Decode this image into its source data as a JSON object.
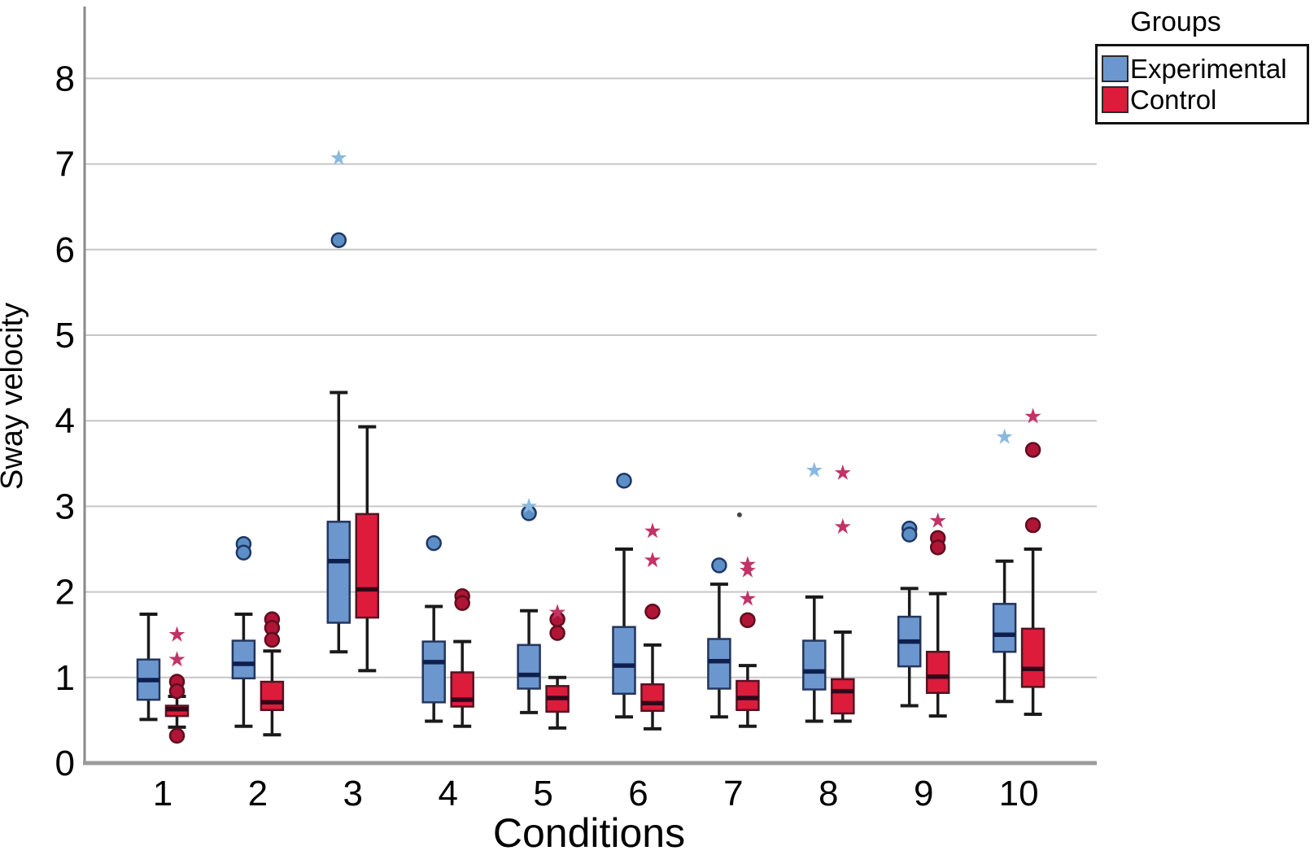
{
  "figure": {
    "background": "#ffffff"
  },
  "legend": {
    "title": "Groups",
    "items": [
      {
        "label": "Experimental",
        "color": "#6b97ce"
      },
      {
        "label": "Control",
        "color": "#dd1c3c"
      }
    ]
  },
  "chart_data": {
    "type": "boxplot",
    "xlabel": "Conditions",
    "ylabel": "Sway velocity",
    "categories": [
      "1",
      "2",
      "3",
      "4",
      "5",
      "6",
      "7",
      "8",
      "9",
      "10"
    ],
    "yticks": [
      0,
      1,
      2,
      3,
      4,
      5,
      6,
      7,
      8
    ],
    "ylim": [
      0,
      8.9
    ],
    "grid": true,
    "legend_position": "top-right",
    "axis_colors": {
      "gridline": "#c6c6c6",
      "y_axis": "#8a8a8a",
      "x_axis": "#9b9b9b",
      "tick_text": "#000000"
    },
    "series": [
      {
        "name": "Experimental",
        "fill": "#6b97ce",
        "edge": "#24365e",
        "median_color": "#0f1f4d",
        "circle_fill": "#5d8fc7",
        "circle_edge": "#1e3765",
        "star_color": "#8ab9de",
        "boxes": [
          {
            "whislo": 0.51,
            "q1": 0.74,
            "med": 0.97,
            "q3": 1.21,
            "whishi": 1.74,
            "circles": [],
            "stars": [],
            "dots": []
          },
          {
            "whislo": 0.43,
            "q1": 0.99,
            "med": 1.16,
            "q3": 1.43,
            "whishi": 1.74,
            "circles": [
              2.56,
              2.46
            ],
            "stars": [],
            "dots": []
          },
          {
            "whislo": 1.3,
            "q1": 1.64,
            "med": 2.36,
            "q3": 2.82,
            "whishi": 4.33,
            "circles": [
              6.11
            ],
            "stars": [
              7.07
            ],
            "dots": []
          },
          {
            "whislo": 0.49,
            "q1": 0.71,
            "med": 1.18,
            "q3": 1.42,
            "whishi": 1.83,
            "circles": [
              2.57
            ],
            "stars": [],
            "dots": []
          },
          {
            "whislo": 0.59,
            "q1": 0.87,
            "med": 1.03,
            "q3": 1.38,
            "whishi": 1.78,
            "circles": [
              2.92
            ],
            "stars": [
              3.0
            ],
            "dots": []
          },
          {
            "whislo": 0.54,
            "q1": 0.81,
            "med": 1.14,
            "q3": 1.59,
            "whishi": 2.5,
            "circles": [
              3.3
            ],
            "stars": [],
            "dots": []
          },
          {
            "whislo": 0.54,
            "q1": 0.87,
            "med": 1.19,
            "q3": 1.45,
            "whishi": 2.09,
            "circles": [
              2.31
            ],
            "stars": [],
            "dots": []
          },
          {
            "whislo": 0.49,
            "q1": 0.86,
            "med": 1.07,
            "q3": 1.43,
            "whishi": 1.94,
            "circles": [],
            "stars": [
              3.42
            ],
            "dots": []
          },
          {
            "whislo": 0.67,
            "q1": 1.13,
            "med": 1.42,
            "q3": 1.71,
            "whishi": 2.04,
            "circles": [
              2.74,
              2.67
            ],
            "stars": [],
            "dots": []
          },
          {
            "whislo": 0.72,
            "q1": 1.3,
            "med": 1.5,
            "q3": 1.86,
            "whishi": 2.36,
            "circles": [],
            "stars": [
              3.81
            ],
            "dots": []
          }
        ]
      },
      {
        "name": "Control",
        "fill": "#dd1c3c",
        "edge": "#551222",
        "median_color": "#30081a",
        "circle_fill": "#b01535",
        "circle_edge": "#5f0d1f",
        "star_color": "#c13366",
        "boxes": [
          {
            "whislo": 0.42,
            "q1": 0.55,
            "med": 0.63,
            "q3": 0.67,
            "whishi": 0.78,
            "circles": [
              0.95,
              0.84,
              0.32
            ],
            "stars": [
              1.5,
              1.21
            ],
            "dots": []
          },
          {
            "whislo": 0.33,
            "q1": 0.62,
            "med": 0.71,
            "q3": 0.95,
            "whishi": 1.31,
            "circles": [
              1.68,
              1.58,
              1.44
            ],
            "stars": [],
            "dots": []
          },
          {
            "whislo": 1.08,
            "q1": 1.7,
            "med": 2.03,
            "q3": 2.91,
            "whishi": 3.93,
            "circles": [],
            "stars": [],
            "dots": []
          },
          {
            "whislo": 0.43,
            "q1": 0.66,
            "med": 0.74,
            "q3": 1.06,
            "whishi": 1.42,
            "circles": [
              1.95,
              1.87
            ],
            "stars": [],
            "dots": []
          },
          {
            "whislo": 0.41,
            "q1": 0.6,
            "med": 0.76,
            "q3": 0.9,
            "whishi": 1.0,
            "circles": [
              1.68,
              1.52
            ],
            "stars": [
              1.76
            ],
            "dots": []
          },
          {
            "whislo": 0.4,
            "q1": 0.61,
            "med": 0.7,
            "q3": 0.92,
            "whishi": 1.38,
            "circles": [
              1.77
            ],
            "stars": [
              2.71,
              2.37
            ],
            "dots": []
          },
          {
            "whislo": 0.43,
            "q1": 0.62,
            "med": 0.76,
            "q3": 0.96,
            "whishi": 1.14,
            "circles": [
              1.67
            ],
            "stars": [
              2.32,
              2.25,
              1.92
            ],
            "dots": [
              2.9
            ]
          },
          {
            "whislo": 0.49,
            "q1": 0.58,
            "med": 0.84,
            "q3": 0.98,
            "whishi": 1.53,
            "circles": [],
            "stars": [
              3.39,
              2.76
            ],
            "dots": []
          },
          {
            "whislo": 0.55,
            "q1": 0.82,
            "med": 1.01,
            "q3": 1.3,
            "whishi": 1.98,
            "circles": [
              2.63,
              2.52
            ],
            "stars": [
              2.83
            ],
            "dots": []
          },
          {
            "whislo": 0.57,
            "q1": 0.89,
            "med": 1.1,
            "q3": 1.57,
            "whishi": 2.5,
            "circles": [
              3.66,
              2.78
            ],
            "stars": [
              4.05
            ],
            "dots": []
          }
        ]
      }
    ]
  }
}
